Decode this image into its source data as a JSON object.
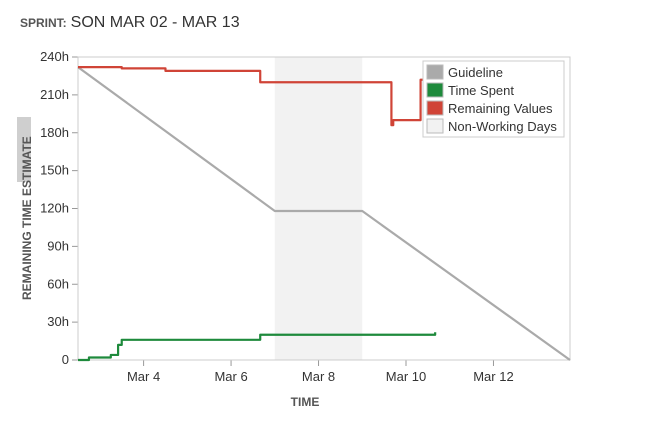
{
  "header": {
    "label": "SPRINT:",
    "sprint_name": "SON MAR 02 - MAR 13"
  },
  "chart_data": {
    "type": "line",
    "xlabel": "TIME",
    "ylabel": "REMAINING TIME ESTIMATE",
    "x_range": [
      "2020-03-02T12:00",
      "2020-03-13T18:00"
    ],
    "ylim": [
      0,
      240
    ],
    "y_ticks": [
      {
        "value": 0,
        "label": "0"
      },
      {
        "value": 30,
        "label": "30h"
      },
      {
        "value": 60,
        "label": "60h"
      },
      {
        "value": 90,
        "label": "90h"
      },
      {
        "value": 120,
        "label": "120h"
      },
      {
        "value": 150,
        "label": "150h"
      },
      {
        "value": 180,
        "label": "180h"
      },
      {
        "value": 210,
        "label": "210h"
      },
      {
        "value": 240,
        "label": "240h"
      }
    ],
    "x_ticks": [
      {
        "value": "2020-03-04",
        "label": "Mar 4"
      },
      {
        "value": "2020-03-06",
        "label": "Mar 6"
      },
      {
        "value": "2020-03-08",
        "label": "Mar 8"
      },
      {
        "value": "2020-03-10",
        "label": "Mar 10"
      },
      {
        "value": "2020-03-12",
        "label": "Mar 12"
      }
    ],
    "non_working": [
      {
        "from": "2020-03-07T00:00",
        "to": "2020-03-09T00:00"
      }
    ],
    "legend_position": "top-right",
    "series": [
      {
        "name": "Guideline",
        "color": "#aaaaaa",
        "step": false,
        "points": [
          [
            "2020-03-02T12:00",
            232
          ],
          [
            "2020-03-07T00:00",
            118
          ],
          [
            "2020-03-09T00:00",
            118
          ],
          [
            "2020-03-13T18:00",
            0
          ]
        ]
      },
      {
        "name": "Time Spent",
        "color": "#1e8a3c",
        "step": true,
        "points": [
          [
            "2020-03-02T12:00",
            0
          ],
          [
            "2020-03-02T18:00",
            2
          ],
          [
            "2020-03-03T06:00",
            4
          ],
          [
            "2020-03-03T10:00",
            12
          ],
          [
            "2020-03-03T12:00",
            16
          ],
          [
            "2020-03-06T16:00",
            20
          ],
          [
            "2020-03-10T16:00",
            20
          ],
          [
            "2020-03-10T16:00",
            22
          ]
        ]
      },
      {
        "name": "Remaining Values",
        "color": "#d04437",
        "step": true,
        "points": [
          [
            "2020-03-02T12:00",
            232
          ],
          [
            "2020-03-03T12:00",
            231
          ],
          [
            "2020-03-04T12:00",
            229
          ],
          [
            "2020-03-06T16:00",
            220
          ],
          [
            "2020-03-09T16:00",
            216
          ],
          [
            "2020-03-09T16:00",
            186
          ],
          [
            "2020-03-09T17:00",
            190
          ],
          [
            "2020-03-10T08:00",
            222
          ],
          [
            "2020-03-10T16:00",
            222
          ]
        ]
      },
      {
        "name": "Non-Working Days",
        "color": "#f2f2f2",
        "step": false,
        "points": []
      }
    ]
  }
}
